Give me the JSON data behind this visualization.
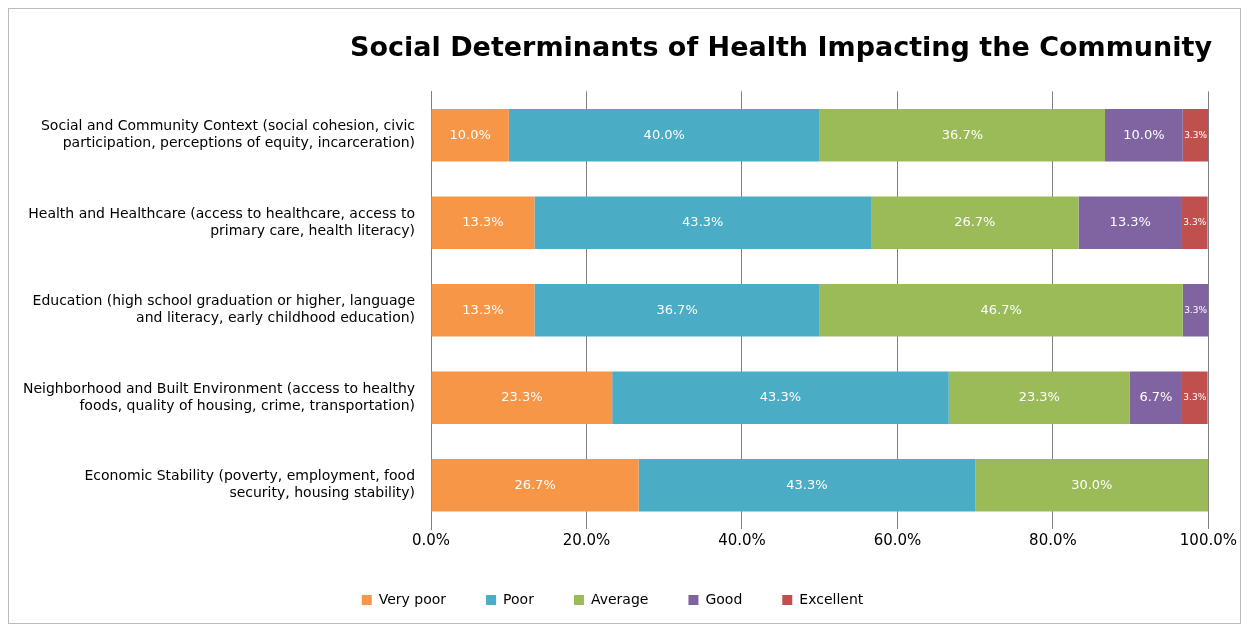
{
  "chart_data": {
    "type": "bar",
    "orientation": "horizontal",
    "stacked": true,
    "title": "Social Determinants of Health Impacting the Community",
    "categories": [
      "Social and Community Context (social cohesion, civic participation, perceptions of equity, incarceration)",
      "Health and Healthcare (access to healthcare, access to primary care, health literacy)",
      "Education (high school graduation or higher, language and literacy, early childhood education)",
      "Neighborhood and Built Environment (access to healthy foods, quality of housing, crime, transportation)",
      "Economic Stability (poverty, employment, food security, housing stability)"
    ],
    "series": [
      {
        "name": "Very poor",
        "color": "#f79646",
        "values": [
          10.0,
          13.3,
          13.3,
          23.3,
          26.7
        ],
        "value_labels": [
          "10.0%",
          "13.3%",
          "13.3%",
          "23.3%",
          "26.7%"
        ]
      },
      {
        "name": "Poor",
        "color": "#4bacc6",
        "values": [
          40.0,
          43.3,
          36.7,
          43.3,
          43.3
        ],
        "value_labels": [
          "40.0%",
          "43.3%",
          "36.7%",
          "43.3%",
          "43.3%"
        ]
      },
      {
        "name": "Average",
        "color": "#9bbb59",
        "values": [
          36.7,
          26.7,
          46.7,
          23.3,
          30.0
        ],
        "value_labels": [
          "36.7%",
          "26.7%",
          "46.7%",
          "23.3%",
          "30.0%"
        ]
      },
      {
        "name": "Good",
        "color": "#8064a2",
        "values": [
          10.0,
          13.3,
          3.3,
          6.7,
          null
        ],
        "value_labels": [
          "10.0%",
          "13.3%",
          "3.3%",
          "6.7%",
          null
        ]
      },
      {
        "name": "Excellent",
        "color": "#c0504d",
        "values": [
          3.3,
          3.3,
          null,
          3.3,
          null
        ],
        "value_labels": [
          "3.3%",
          "3.3%",
          null,
          "3.3%",
          null
        ]
      }
    ],
    "xlim": [
      0,
      100
    ],
    "xticks": [
      {
        "value": 0,
        "label": "0.0%"
      },
      {
        "value": 20,
        "label": "20.0%"
      },
      {
        "value": 40,
        "label": "40.0%"
      },
      {
        "value": 60,
        "label": "60.0%"
      },
      {
        "value": 80,
        "label": "80.0%"
      },
      {
        "value": 100,
        "label": "100.0%"
      }
    ],
    "grid": "x",
    "legend": "bottom"
  }
}
